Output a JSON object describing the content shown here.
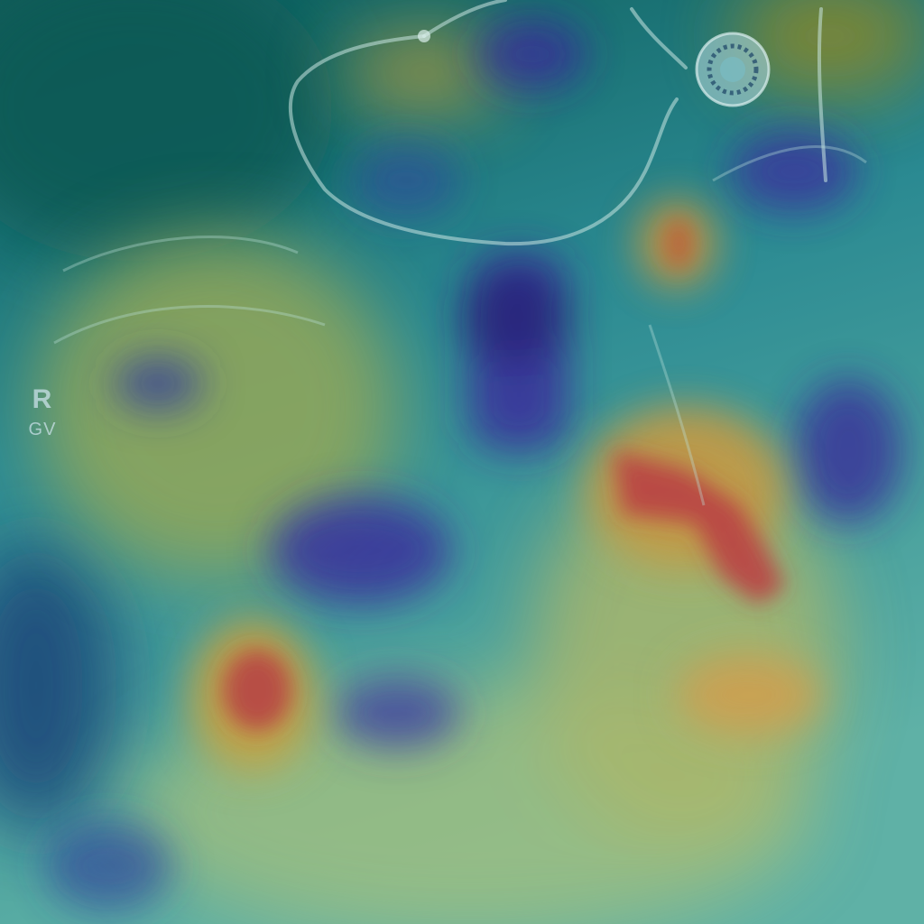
{
  "image": {
    "kind": "chest x-ray with attention heatmap overlay",
    "colormap": "jet",
    "colors": {
      "low": "#3b2a9a",
      "mid_low": "#1f7f8f",
      "mid": "#4fae9a",
      "mid_high": "#c9b44a",
      "high": "#c8363a",
      "base": "#0f4a55"
    }
  },
  "marker": {
    "line1": "R",
    "line2": "GV"
  }
}
